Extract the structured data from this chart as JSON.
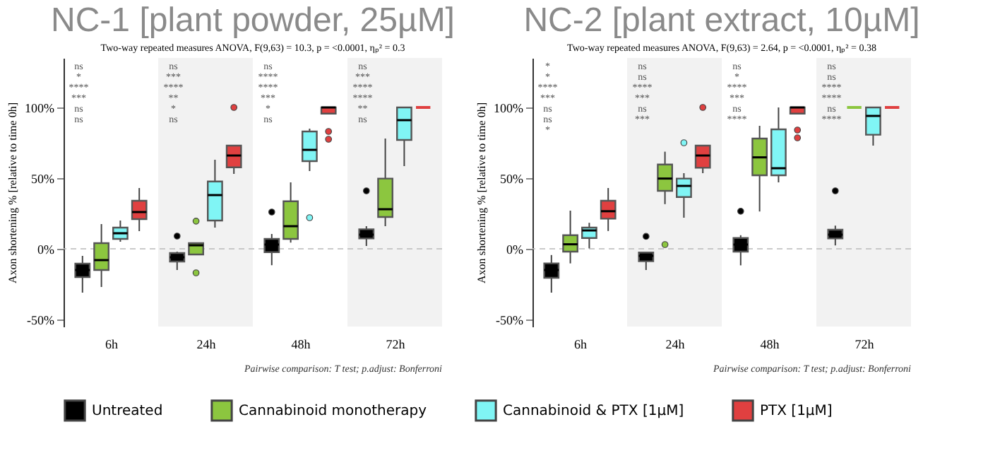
{
  "chart_data": [
    {
      "type": "box",
      "title": "NC-1 [plant powder, 25µM]",
      "subtitle": "Two-way repeated measures ANOVA, F(9,63) = 10.3, p = <0.0001, ηₚ² = 0.3",
      "ylabel": "Axon shortening % [relative to time 0h]",
      "categories": [
        "6h",
        "24h",
        "48h",
        "72h"
      ],
      "series": [
        {
          "name": "Untreated",
          "color": "#000000",
          "boxes": [
            {
              "low": -31,
              "q1": -20,
              "median": -15,
              "q3": -10.5,
              "high": -5
            },
            {
              "low": -15,
              "q1": -9,
              "median": -6,
              "q3": -3,
              "high": -2,
              "outliers": [
                9
              ]
            },
            {
              "low": -11.6,
              "q1": -2.4,
              "median": 3,
              "q3": 7,
              "high": 10.5,
              "outliers": [
                26
              ]
            },
            {
              "low": 2,
              "q1": 7.3,
              "median": 10,
              "q3": 13.8,
              "high": 16,
              "outliers": [
                41
              ]
            }
          ]
        },
        {
          "name": "Cannabinoid monotherapy",
          "color": "#8cc63f",
          "boxes": [
            {
              "low": -27,
              "q1": -15,
              "median": -8,
              "q3": 4,
              "high": 17.5
            },
            {
              "low": -4,
              "q1": -4,
              "median": 2.5,
              "q3": 4,
              "high": 4,
              "outliers": [
                19.6,
                -17
              ]
            },
            {
              "low": 4.4,
              "q1": 7,
              "median": 16,
              "q3": 33.6,
              "high": 47
            },
            {
              "low": 16,
              "q1": 22.5,
              "median": 28,
              "q3": 49.7,
              "high": 78
            }
          ]
        },
        {
          "name": "Cannabinoid & PTX [1µM]",
          "color": "#80f5f5",
          "boxes": [
            {
              "low": 5,
              "q1": 7,
              "median": 11,
              "q3": 15,
              "high": 20
            },
            {
              "low": 15,
              "q1": 20,
              "median": 38,
              "q3": 47.6,
              "high": 63
            },
            {
              "low": 55,
              "q1": 62,
              "median": 70,
              "q3": 83,
              "high": 85,
              "outliers": [
                22
              ]
            },
            {
              "low": 58.5,
              "q1": 77,
              "median": 91,
              "q3": 100,
              "high": 100
            }
          ]
        },
        {
          "name": "PTX [1µM]",
          "color": "#e04040",
          "boxes": [
            {
              "low": 12.5,
              "q1": 21,
              "median": 26,
              "q3": 34,
              "high": 43
            },
            {
              "low": 53,
              "q1": 57.6,
              "median": 66,
              "q3": 73,
              "high": 73,
              "outliers": [
                100
              ]
            },
            {
              "low": 95.6,
              "q1": 95.6,
              "median": 100,
              "q3": 100,
              "high": 100,
              "outliers": [
                83,
                77.5
              ]
            },
            {
              "low": 100,
              "q1": 100,
              "median": 100,
              "q3": 100,
              "high": 100
            }
          ]
        }
      ],
      "ylim": [
        -55,
        135
      ],
      "yticks": [
        {
          "value": -50,
          "label": "-50%"
        },
        {
          "value": 0,
          "label": "0%"
        },
        {
          "value": 50,
          "label": "50%"
        },
        {
          "value": 100,
          "label": "100%"
        }
      ],
      "ref_lines": [
        {
          "axis": "y",
          "value": 0,
          "color": "#bbbbbb",
          "line_style": "dashed"
        }
      ],
      "bands": [
        {
          "axis": "x",
          "from": "24h",
          "to": "24h",
          "color": "#f2f2f2"
        },
        {
          "axis": "x",
          "from": "72h",
          "to": "72h",
          "color": "#f2f2f2"
        }
      ],
      "legend": "bottom",
      "grid": false,
      "annotations": [
        "Pairwise comparison: T test; p.adjust: Bonferroni",
        "ns",
        "*",
        "****",
        "***",
        "ns",
        "ns",
        "ns",
        "***",
        "****",
        "**",
        "*",
        "ns",
        "ns",
        "****",
        "****",
        "***",
        "*",
        "ns",
        "ns",
        "***",
        "****",
        "****",
        "**",
        "ns"
      ]
    },
    {
      "type": "box",
      "title": "NC-2 [plant extract, 10µM]",
      "subtitle": "Two-way repeated measures ANOVA, F(9,63) = 2.64, p = <0.0001, ηₚ² = 0.38",
      "ylabel": "Axon shortening % [relative to time 0h]",
      "categories": [
        "6h",
        "24h",
        "48h",
        "72h"
      ],
      "series": [
        {
          "name": "Untreated",
          "color": "#000000",
          "boxes": [
            {
              "low": -31,
              "q1": -20.5,
              "median": -15,
              "q3": -10.3,
              "high": -4.4
            },
            {
              "low": -15,
              "q1": -8.8,
              "median": -5,
              "q3": -2.6,
              "high": -2,
              "outliers": [
                8.8
              ]
            },
            {
              "low": -11.7,
              "q1": -2,
              "median": 3,
              "q3": 7.6,
              "high": 9.6,
              "outliers": [
                26.6
              ]
            },
            {
              "low": 2.4,
              "q1": 7.3,
              "median": 10,
              "q3": 13.5,
              "high": 16.4,
              "outliers": [
                41
              ]
            }
          ]
        },
        {
          "name": "Cannabinoid monotherapy",
          "color": "#8cc63f",
          "boxes": [
            {
              "low": -10.3,
              "q1": -2,
              "median": 3.2,
              "q3": 9.6,
              "high": 27
            },
            {
              "low": 31.6,
              "q1": 41,
              "median": 49.7,
              "q3": 59.6,
              "high": 68.7,
              "outliers": [
                3
              ]
            },
            {
              "low": 26.4,
              "q1": 52,
              "median": 64.7,
              "q3": 78,
              "high": 87
            },
            {
              "low": 100,
              "q1": 100,
              "median": 100,
              "q3": 100,
              "high": 100
            }
          ]
        },
        {
          "name": "Cannabinoid & PTX [1µM]",
          "color": "#80f5f5",
          "boxes": [
            {
              "low": 0.3,
              "q1": 7.6,
              "median": 13,
              "q3": 15,
              "high": 18.4
            },
            {
              "low": 22,
              "q1": 36.6,
              "median": 44.5,
              "q3": 49.7,
              "high": 53.5,
              "outliers": [
                75
              ]
            },
            {
              "low": 47,
              "q1": 52,
              "median": 57,
              "q3": 84.5,
              "high": 100
            },
            {
              "low": 73,
              "q1": 80.7,
              "median": 94,
              "q3": 100,
              "high": 100
            }
          ]
        },
        {
          "name": "PTX [1µM]",
          "color": "#e04040",
          "boxes": [
            {
              "low": 12.6,
              "q1": 21.3,
              "median": 26.6,
              "q3": 34,
              "high": 43
            },
            {
              "low": 53.5,
              "q1": 57.3,
              "median": 66,
              "q3": 73,
              "high": 73,
              "outliers": [
                100
              ]
            },
            {
              "low": 95.6,
              "q1": 95.6,
              "median": 100,
              "q3": 100,
              "high": 100,
              "outliers": [
                84,
                78.5
              ]
            },
            {
              "low": 100,
              "q1": 100,
              "median": 100,
              "q3": 100,
              "high": 100
            }
          ]
        }
      ],
      "ylim": [
        -55,
        135
      ],
      "yticks": [
        {
          "value": -50,
          "label": "-50%"
        },
        {
          "value": 0,
          "label": "0%"
        },
        {
          "value": 50,
          "label": "50%"
        },
        {
          "value": 100,
          "label": "100%"
        }
      ],
      "ref_lines": [
        {
          "axis": "y",
          "value": 0,
          "color": "#bbbbbb",
          "line_style": "dashed"
        }
      ],
      "bands": [
        {
          "axis": "x",
          "from": "24h",
          "to": "24h",
          "color": "#f2f2f2"
        },
        {
          "axis": "x",
          "from": "72h",
          "to": "72h",
          "color": "#f2f2f2"
        }
      ],
      "legend": "bottom",
      "grid": false,
      "annotations": [
        "Pairwise comparison: T test; p.adjust: Bonferroni",
        "*",
        "*",
        "****",
        "***",
        "ns",
        "ns",
        "*",
        "ns",
        "ns",
        "****",
        "***",
        "ns",
        "***",
        "ns",
        "*",
        "****",
        "***",
        "ns",
        "****",
        "ns",
        "ns",
        "****",
        "****",
        "ns",
        "****"
      ]
    }
  ]
}
